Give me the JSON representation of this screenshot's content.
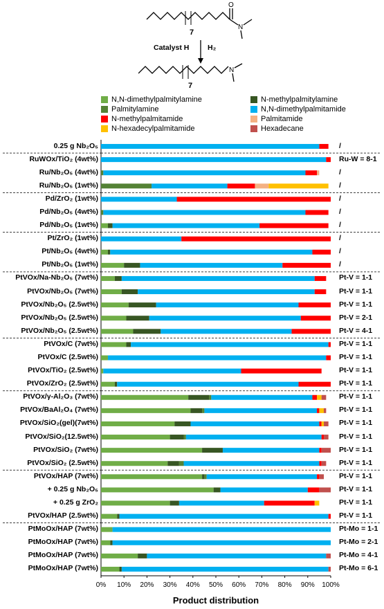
{
  "scheme": {
    "catalyst_label": "Catalyst H",
    "reagent_label": "H₂",
    "repeat_top": "7",
    "repeat_bottom": "7",
    "atom_o": "O",
    "atom_n_top": "N",
    "atom_n_bottom": "N"
  },
  "chart_data": {
    "type": "bar",
    "orientation": "horizontal",
    "stacked": true,
    "xlabel": "Product distribution",
    "xlim": [
      0,
      100
    ],
    "xticks": [
      "0%",
      "10%",
      "20%",
      "30%",
      "40%",
      "50%",
      "60%",
      "70%",
      "80%",
      "90%",
      "100%"
    ],
    "legend_placement": "top",
    "series": [
      {
        "name": "N,N-dimethylpalmitylamine",
        "color": "#70AD47"
      },
      {
        "name": "N-methylpalmitylamine",
        "color": "#375623"
      },
      {
        "name": "Palmitylamine",
        "color": "#548235"
      },
      {
        "name": "N,N-dimethylpalmitamide",
        "color": "#00B0F0"
      },
      {
        "name": "N-methylpalmitamide",
        "color": "#FF0000"
      },
      {
        "name": "Palmitamide",
        "color": "#F4B183"
      },
      {
        "name": "N-hexadecylpalmitamide",
        "color": "#FFC000"
      },
      {
        "name": "Hexadecane",
        "color": "#C0504D"
      }
    ],
    "categories": [
      {
        "label": "0.25 g Nb₂O₅",
        "ratio": "/",
        "values": [
          0,
          0,
          0,
          95,
          4,
          0,
          0,
          0
        ]
      },
      {
        "label": "RuWOx/TiO₂ (4wt%)",
        "ratio": "Ru-W = 8-1",
        "values": [
          0,
          0,
          0,
          98,
          2,
          0,
          0,
          0
        ]
      },
      {
        "label": "Ru/Nb₂O₅    (4wt%)",
        "ratio": "/",
        "values": [
          0,
          0,
          1,
          88,
          5,
          1,
          0,
          0
        ]
      },
      {
        "label": "Ru/Nb₂O₅    (1wt%)",
        "ratio": "/",
        "values": [
          0,
          0,
          22,
          33,
          12,
          6,
          26,
          0
        ]
      },
      {
        "label": "Pd/ZrO₂      (1wt%)",
        "ratio": "/",
        "values": [
          0,
          0,
          0,
          33,
          67,
          0,
          0,
          0
        ]
      },
      {
        "label": "Pd/Nb₂O₅    (4wt%)",
        "ratio": "/",
        "values": [
          0,
          0,
          1,
          88,
          10,
          0,
          0,
          0
        ]
      },
      {
        "label": "Pd/Nb₂O₅    (1wt%)",
        "ratio": "/",
        "values": [
          3,
          2,
          0,
          64,
          30,
          0,
          0,
          0
        ]
      },
      {
        "label": "Pt/ZrO₂       (1wt%)",
        "ratio": "/",
        "values": [
          0,
          0,
          0,
          35,
          65,
          0,
          0,
          0
        ]
      },
      {
        "label": "Pt/Nb₂O₅     (4wt%)",
        "ratio": "/",
        "values": [
          3,
          1,
          0,
          88,
          8,
          0,
          0,
          0
        ]
      },
      {
        "label": "Pt/Nb₂O₅     (1wt%)",
        "ratio": "/",
        "values": [
          10,
          7,
          0,
          62,
          21,
          0,
          0,
          0
        ]
      },
      {
        "label": "PtVOx/Na-Nb₂O₅ (7wt%)",
        "ratio": "Pt-V = 1-1",
        "values": [
          6,
          3,
          0,
          84,
          5,
          0,
          0,
          0
        ]
      },
      {
        "label": "PtVOx/Nb₂O₅     (7wt%)",
        "ratio": "Pt-V = 1-1",
        "values": [
          9,
          7,
          0,
          77,
          5,
          0,
          0,
          0
        ]
      },
      {
        "label": "PtVOx/Nb₂O₅ (2.5wt%)",
        "ratio": "Pt-V = 1-1",
        "values": [
          12,
          12,
          0,
          62,
          14,
          0,
          0,
          0
        ]
      },
      {
        "label": "PtVOx/Nb₂O₅ (2.5wt%)",
        "ratio": "Pt-V = 2-1",
        "values": [
          11,
          10,
          0,
          66,
          13,
          0,
          0,
          0
        ]
      },
      {
        "label": "PtVOx/Nb₂O₅ (2.5wt%)",
        "ratio": "Pt-V = 4-1",
        "values": [
          14,
          12,
          0,
          57,
          17,
          0,
          0,
          0
        ]
      },
      {
        "label": "PtVOx/C          (7wt%)",
        "ratio": "Pt-V = 1-1",
        "values": [
          11,
          2,
          0,
          86,
          1,
          0,
          0,
          0
        ]
      },
      {
        "label": "PtVOx/C       (2.5wt%)",
        "ratio": "Pt-V = 1-1",
        "values": [
          3,
          0,
          0,
          95,
          2,
          0,
          0,
          0
        ]
      },
      {
        "label": "PtVOx/TiO₂ (2.5wt%)",
        "ratio": "Pt-V = 1-1",
        "values": [
          1,
          0,
          0,
          60,
          35,
          0,
          0,
          0
        ]
      },
      {
        "label": "PtVOx/ZrO₂ (2.5wt%)",
        "ratio": "Pt-V = 1-1",
        "values": [
          6,
          1,
          0,
          79,
          14,
          0,
          0,
          0
        ]
      },
      {
        "label": "PtVOx/γ-Al₂O₃ (7wt%)",
        "ratio": "Pt-V = 1-1",
        "values": [
          38,
          9,
          1,
          44,
          2,
          0,
          2,
          2
        ]
      },
      {
        "label": "PtVOx/BaAl₂O₄ (7wt%)",
        "ratio": "Pt-V = 1-1",
        "values": [
          39,
          5,
          1,
          49,
          1,
          0,
          2,
          1
        ]
      },
      {
        "label": "PtVOx/SiO₂(gel)(7wt%)",
        "ratio": "Pt-V = 1-1",
        "values": [
          32,
          7,
          0,
          56,
          1,
          0,
          1,
          2
        ]
      },
      {
        "label": "PtVOx/SiO₂(12.5wt%)",
        "ratio": "Pt-V = 1-1",
        "values": [
          30,
          6,
          1,
          59,
          1,
          0,
          0,
          2
        ]
      },
      {
        "label": "PtVOx/SiO₂       (7wt%)",
        "ratio": "Pt-V = 1-1",
        "values": [
          44,
          9,
          0,
          42,
          1,
          0,
          0,
          4
        ]
      },
      {
        "label": "PtVOx/SiO₂    (2.5wt%)",
        "ratio": "Pt-V = 1-1",
        "values": [
          29,
          5,
          2,
          59,
          1,
          0,
          0,
          2
        ]
      },
      {
        "label": "PtVOx/HAP     (7wt%)",
        "ratio": "Pt-V = 1-1",
        "values": [
          44,
          1,
          1,
          48,
          1,
          0,
          0,
          2
        ]
      },
      {
        "label": "+ 0.25 g Nb₂O₅",
        "ratio": "Pt-V = 1-1",
        "values": [
          49,
          3,
          0,
          38,
          5,
          0,
          0,
          5
        ]
      },
      {
        "label": "+ 0.25 g ZrO₂",
        "ratio": "Pt-V = 1-1",
        "values": [
          30,
          4,
          0,
          37,
          22,
          0,
          2,
          0
        ]
      },
      {
        "label": "PtVOx/HAP (2.5wt%)",
        "ratio": "Pt-V = 1-1",
        "values": [
          7,
          1,
          0,
          91,
          1,
          0,
          0,
          0
        ]
      },
      {
        "label": "PtMoOx/HAP (7wt%)",
        "ratio": "Pt-Mo = 1-1",
        "values": [
          5,
          0,
          0,
          95,
          0,
          0,
          0,
          0
        ]
      },
      {
        "label": "PtMoOx/HAP (7wt%)",
        "ratio": "Pt-Mo = 2-1",
        "values": [
          4,
          1,
          0,
          95,
          0,
          0,
          0,
          0
        ]
      },
      {
        "label": "PtMoOx/HAP (7wt%)",
        "ratio": "Pt-Mo = 4-1",
        "values": [
          16,
          4,
          0,
          78,
          0,
          0,
          0,
          2
        ]
      },
      {
        "label": "PtMoOx/HAP (7wt%)",
        "ratio": "Pt-Mo = 6-1",
        "values": [
          8,
          1,
          0,
          90,
          0,
          0,
          0,
          1
        ]
      }
    ]
  }
}
